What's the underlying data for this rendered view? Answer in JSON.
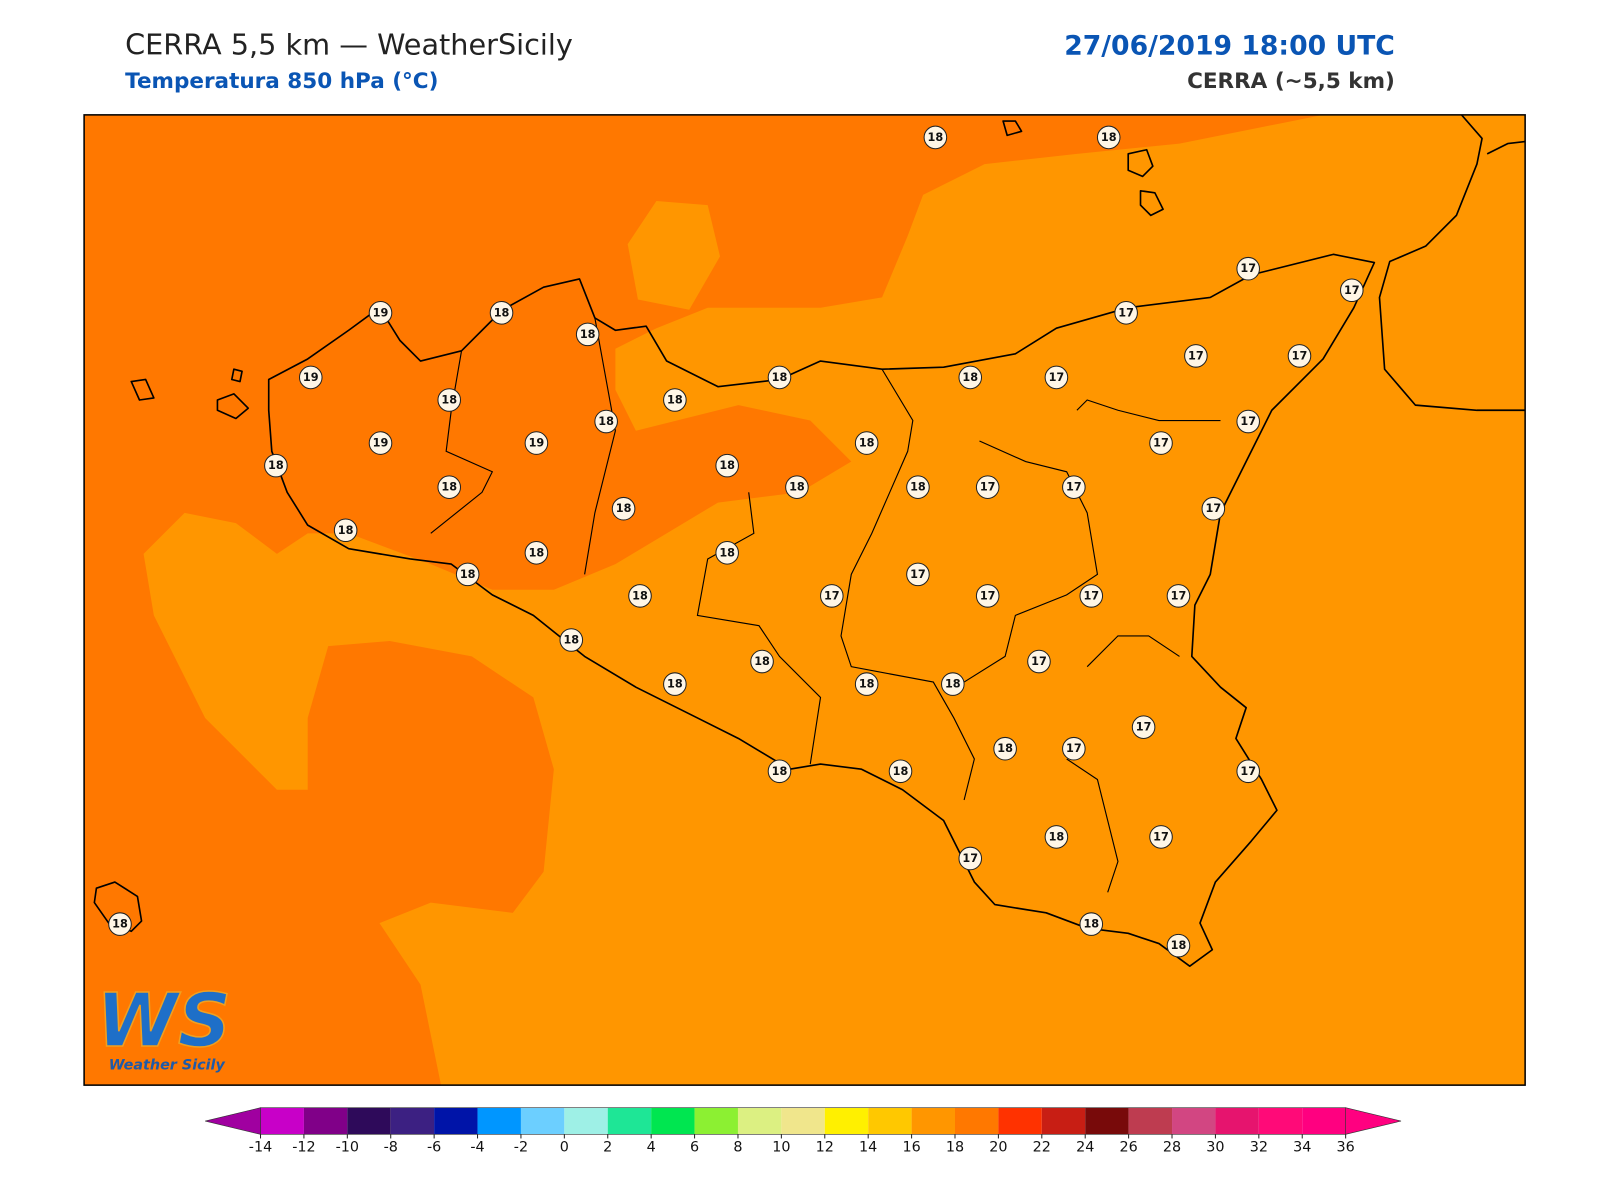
{
  "header": {
    "title": "CERRA 5,5 km — WeatherSicily",
    "subtitle": "Temperatura 850 hPa (°C)",
    "datetime": "27/06/2019 18:00 UTC",
    "model": "CERRA (~5,5 km)"
  },
  "map": {
    "stations": [
      18,
      18,
      17,
      17,
      19,
      18,
      18,
      17,
      17,
      17,
      19,
      18,
      18,
      17,
      18,
      18,
      18,
      17,
      19,
      19,
      18,
      17,
      18,
      18,
      18,
      18,
      18,
      17,
      17,
      18,
      17,
      18,
      18,
      18,
      18,
      17,
      18,
      17,
      17,
      17,
      17,
      18,
      18,
      17,
      18,
      18,
      18,
      17,
      18,
      17,
      18,
      18,
      17,
      18,
      17,
      17,
      18,
      18,
      18
    ]
  },
  "logo": {
    "mark": "WS",
    "name": "Weather Sicily"
  },
  "colorbar": {
    "ticks": [
      -14,
      -12,
      -10,
      -8,
      -6,
      -4,
      -2,
      0,
      2,
      4,
      6,
      8,
      10,
      12,
      14,
      16,
      18,
      20,
      22,
      24,
      26,
      28,
      30,
      32,
      34,
      36
    ],
    "colors": [
      "#c800c8",
      "#800088",
      "#2e0a5a",
      "#3c2082",
      "#0014a8",
      "#0096ff",
      "#6ccfff",
      "#9ef0e6",
      "#1ee696",
      "#00e650",
      "#8cf032",
      "#dcf082",
      "#f0e68c",
      "#fff000",
      "#ffc800",
      "#ff9600",
      "#ff7800",
      "#ff3200",
      "#c81e14",
      "#780a0a",
      "#be3c50",
      "#d24682",
      "#e6146e",
      "#ff0a78",
      "#ff0080"
    ],
    "under_color": "#a000a0",
    "over_color": "#ff0080"
  }
}
